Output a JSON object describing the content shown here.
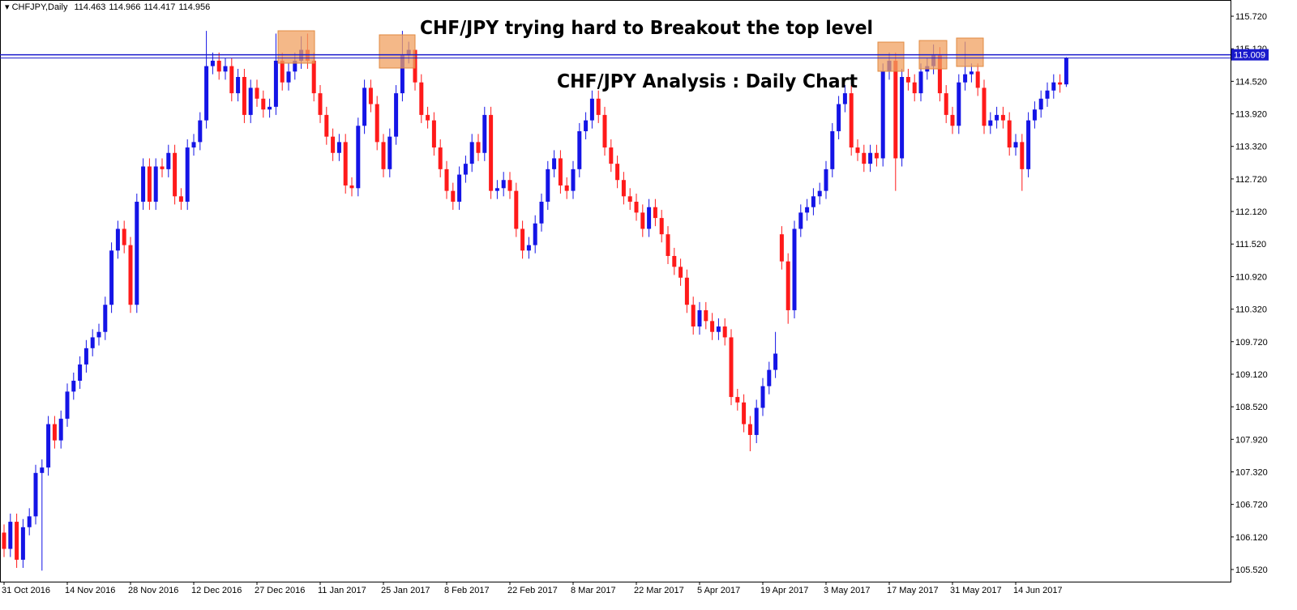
{
  "chart_data": {
    "type": "candlestick",
    "symbol": "CHFJPY,Daily",
    "annotations": [
      "CHF/JPY trying hard to Breakout the top level",
      "CHF/JPY Analysis : Daily Chart"
    ],
    "up_color": "#1414e6",
    "down_color": "#ff1a1a",
    "level": 115.009,
    "level_color": "#1a1acc",
    "ylim": [
      105.296,
      116.019
    ],
    "yticks": [
      {
        "value": 105.52,
        "label": "105.520"
      },
      {
        "value": 106.12,
        "label": "106.120"
      },
      {
        "value": 106.72,
        "label": "106.720"
      },
      {
        "value": 107.32,
        "label": "107.320"
      },
      {
        "value": 107.92,
        "label": "107.920"
      },
      {
        "value": 108.52,
        "label": "108.520"
      },
      {
        "value": 109.12,
        "label": "109.120"
      },
      {
        "value": 109.72,
        "label": "109.720"
      },
      {
        "value": 110.32,
        "label": "110.320"
      },
      {
        "value": 110.92,
        "label": "110.920"
      },
      {
        "value": 111.52,
        "label": "111.520"
      },
      {
        "value": 112.12,
        "label": "112.120"
      },
      {
        "value": 112.72,
        "label": "112.720"
      },
      {
        "value": 113.32,
        "label": "113.320"
      },
      {
        "value": 113.92,
        "label": "113.920"
      },
      {
        "value": 114.52,
        "label": "114.520"
      },
      {
        "value": 115.12,
        "label": "115.120"
      },
      {
        "value": 115.72,
        "label": "115.720"
      }
    ],
    "categories": [
      "31 Oct 2016",
      null,
      null,
      null,
      null,
      null,
      null,
      null,
      null,
      null,
      "14 Nov 2016",
      null,
      null,
      null,
      null,
      null,
      null,
      null,
      null,
      null,
      "28 Nov 2016",
      null,
      null,
      null,
      null,
      null,
      null,
      null,
      null,
      null,
      "12 Dec 2016",
      null,
      null,
      null,
      null,
      null,
      null,
      null,
      null,
      null,
      "27 Dec 2016",
      null,
      null,
      null,
      null,
      null,
      null,
      null,
      null,
      null,
      "11 Jan 2017",
      null,
      null,
      null,
      null,
      null,
      null,
      null,
      null,
      null,
      "25 Jan 2017",
      null,
      null,
      null,
      null,
      null,
      null,
      null,
      null,
      null,
      "8 Feb 2017",
      null,
      null,
      null,
      null,
      null,
      null,
      null,
      null,
      null,
      "22 Feb 2017",
      null,
      null,
      null,
      null,
      null,
      null,
      null,
      null,
      null,
      "8 Mar 2017",
      null,
      null,
      null,
      null,
      null,
      null,
      null,
      null,
      null,
      "22 Mar 2017",
      null,
      null,
      null,
      null,
      null,
      null,
      null,
      null,
      null,
      "5 Apr 2017",
      null,
      null,
      null,
      null,
      null,
      null,
      null,
      null,
      null,
      "19 Apr 2017",
      null,
      null,
      null,
      null,
      null,
      null,
      null,
      null,
      null,
      "3 May 2017",
      null,
      null,
      null,
      null,
      null,
      null,
      null,
      null,
      null,
      "17 May 2017",
      null,
      null,
      null,
      null,
      null,
      null,
      null,
      null,
      null,
      "31 May 2017",
      null,
      null,
      null,
      null,
      null,
      null,
      null,
      null,
      null,
      "14 Jun 2017",
      null,
      null,
      null,
      null,
      null,
      null,
      null,
      null
    ],
    "open": [
      106.2,
      105.9,
      106.4,
      105.7,
      106.3,
      106.5,
      107.3,
      107.4,
      108.2,
      107.9,
      108.3,
      108.8,
      109.0,
      109.3,
      109.6,
      109.8,
      109.9,
      110.4,
      111.4,
      111.8,
      111.5,
      110.4,
      112.3,
      112.95,
      112.3,
      112.95,
      112.9,
      113.2,
      112.4,
      112.3,
      113.3,
      113.4,
      113.8,
      114.8,
      114.9,
      114.7,
      114.8,
      114.3,
      114.6,
      113.9,
      114.4,
      114.2,
      114.0,
      114.05,
      114.9,
      114.5,
      114.7,
      114.9,
      115.1,
      114.9,
      114.3,
      113.9,
      113.5,
      113.2,
      113.4,
      112.6,
      112.55,
      113.7,
      114.4,
      114.1,
      113.4,
      112.9,
      113.5,
      114.3,
      115.0,
      115.1,
      114.5,
      113.9,
      113.8,
      113.3,
      112.9,
      112.5,
      112.3,
      112.8,
      113.0,
      113.4,
      113.2,
      113.9,
      112.5,
      112.55,
      112.7,
      112.5,
      111.8,
      111.4,
      111.5,
      111.9,
      112.3,
      112.9,
      113.1,
      112.6,
      112.5,
      112.9,
      113.6,
      113.8,
      114.2,
      113.9,
      113.3,
      113.0,
      112.7,
      112.4,
      112.3,
      112.1,
      111.8,
      112.2,
      112.0,
      111.7,
      111.3,
      111.1,
      110.9,
      110.4,
      110.0,
      110.3,
      110.1,
      109.9,
      110.0,
      109.8,
      108.7,
      108.6,
      108.2,
      108.0,
      108.5,
      108.9,
      109.2,
      111.7,
      111.2,
      110.3,
      111.8,
      112.1,
      112.2,
      112.4,
      112.5,
      112.9,
      113.6,
      114.1,
      114.3,
      113.3,
      113.2,
      113.0,
      113.2,
      113.1,
      114.7,
      114.9,
      113.1,
      114.6,
      114.5,
      114.3,
      114.7,
      114.8,
      115.0,
      114.3,
      113.9,
      113.7,
      114.5,
      114.65,
      114.7,
      114.4,
      113.7,
      113.8,
      113.9,
      113.8,
      113.3,
      113.4,
      112.9,
      113.8,
      114.0,
      114.2,
      114.35,
      114.5,
      114.463
    ],
    "high": [
      106.35,
      106.55,
      106.55,
      106.45,
      106.65,
      107.45,
      107.55,
      108.35,
      108.35,
      108.45,
      108.95,
      109.15,
      109.45,
      109.75,
      109.95,
      110.05,
      110.55,
      111.55,
      111.95,
      111.95,
      111.65,
      112.45,
      113.1,
      113.1,
      113.1,
      113.1,
      113.35,
      113.35,
      112.55,
      113.45,
      113.55,
      113.95,
      115.45,
      115.05,
      115.05,
      114.95,
      114.95,
      114.75,
      114.75,
      114.55,
      114.55,
      114.35,
      114.2,
      115.4,
      115.05,
      114.85,
      115.05,
      115.35,
      115.4,
      115.05,
      114.45,
      114.05,
      113.65,
      113.55,
      113.55,
      112.75,
      113.85,
      114.55,
      114.55,
      114.25,
      113.55,
      113.65,
      114.45,
      115.45,
      115.25,
      115.25,
      114.65,
      114.05,
      113.95,
      113.45,
      113.05,
      112.65,
      112.95,
      113.15,
      113.55,
      113.55,
      114.05,
      114.05,
      112.7,
      112.85,
      112.85,
      112.65,
      111.95,
      111.65,
      112.05,
      112.45,
      113.05,
      113.25,
      113.25,
      112.75,
      113.05,
      113.75,
      113.95,
      114.35,
      114.35,
      114.05,
      113.45,
      113.15,
      112.85,
      112.55,
      112.45,
      112.25,
      112.35,
      112.35,
      112.15,
      111.85,
      111.45,
      111.25,
      111.05,
      110.55,
      110.45,
      110.45,
      110.25,
      110.15,
      110.15,
      109.95,
      108.85,
      108.75,
      108.35,
      108.65,
      109.05,
      109.35,
      109.9,
      111.85,
      111.35,
      111.95,
      112.25,
      112.35,
      112.55,
      112.65,
      113.05,
      113.75,
      114.25,
      114.45,
      114.45,
      113.45,
      113.35,
      113.35,
      113.35,
      114.85,
      115.05,
      115.05,
      114.75,
      114.75,
      114.65,
      114.85,
      114.95,
      115.2,
      115.15,
      114.45,
      114.05,
      114.65,
      115.25,
      114.85,
      114.85,
      114.55,
      113.95,
      114.05,
      114.05,
      113.95,
      113.55,
      113.55,
      113.95,
      114.15,
      114.35,
      114.5,
      114.65,
      114.65,
      114.966
    ],
    "low": [
      105.75,
      105.75,
      105.55,
      105.55,
      106.15,
      106.35,
      105.5,
      107.25,
      107.75,
      107.75,
      108.15,
      108.65,
      108.85,
      109.15,
      109.45,
      109.65,
      109.75,
      110.25,
      111.25,
      111.35,
      110.25,
      110.25,
      112.15,
      112.15,
      112.15,
      112.75,
      112.75,
      112.25,
      112.15,
      112.15,
      113.15,
      113.25,
      113.65,
      114.65,
      114.55,
      114.55,
      114.15,
      114.15,
      113.75,
      113.75,
      114.05,
      113.85,
      113.85,
      113.9,
      114.35,
      114.35,
      114.55,
      114.75,
      114.75,
      114.15,
      113.75,
      113.35,
      113.05,
      113.05,
      112.45,
      112.4,
      112.4,
      113.55,
      113.95,
      113.25,
      112.75,
      112.75,
      113.35,
      114.15,
      114.85,
      114.35,
      113.75,
      113.65,
      113.15,
      112.75,
      112.35,
      112.15,
      112.15,
      112.65,
      112.85,
      113.05,
      113.05,
      112.35,
      112.35,
      112.4,
      112.35,
      111.65,
      111.25,
      111.25,
      111.35,
      111.75,
      112.15,
      112.75,
      112.45,
      112.35,
      112.35,
      112.75,
      113.45,
      113.65,
      113.75,
      113.15,
      112.85,
      112.55,
      112.25,
      112.15,
      111.95,
      111.65,
      111.65,
      111.85,
      111.55,
      111.15,
      110.95,
      110.75,
      110.25,
      109.85,
      109.85,
      109.95,
      109.75,
      109.75,
      109.65,
      108.55,
      108.45,
      108.05,
      107.7,
      107.85,
      108.35,
      108.75,
      109.05,
      111.05,
      110.05,
      110.15,
      111.65,
      111.95,
      112.05,
      112.25,
      112.35,
      112.75,
      113.45,
      113.95,
      113.15,
      113.05,
      112.85,
      112.85,
      112.95,
      112.95,
      114.55,
      112.5,
      112.95,
      114.35,
      114.15,
      114.15,
      114.55,
      114.65,
      114.15,
      113.75,
      113.55,
      113.55,
      114.35,
      114.5,
      114.25,
      113.55,
      113.55,
      113.65,
      113.65,
      113.15,
      113.15,
      112.5,
      112.75,
      113.65,
      113.85,
      114.05,
      114.2,
      114.31,
      114.417
    ],
    "close": [
      105.9,
      106.4,
      105.7,
      106.3,
      106.5,
      107.3,
      107.4,
      108.2,
      107.9,
      108.3,
      108.8,
      109.0,
      109.3,
      109.6,
      109.8,
      109.9,
      110.4,
      111.4,
      111.8,
      111.5,
      110.4,
      112.3,
      112.95,
      112.3,
      112.95,
      112.9,
      113.2,
      112.4,
      112.3,
      113.3,
      113.4,
      113.8,
      114.8,
      114.9,
      114.7,
      114.8,
      114.3,
      114.6,
      113.9,
      114.4,
      114.2,
      114.0,
      114.05,
      114.9,
      114.5,
      114.7,
      114.9,
      115.1,
      114.9,
      114.3,
      113.9,
      113.5,
      113.2,
      113.4,
      112.6,
      112.55,
      113.7,
      114.4,
      114.1,
      113.4,
      112.9,
      113.5,
      114.3,
      115.0,
      115.1,
      114.5,
      113.9,
      113.8,
      113.3,
      112.9,
      112.5,
      112.3,
      112.8,
      113.0,
      113.4,
      113.2,
      113.9,
      112.5,
      112.55,
      112.7,
      112.5,
      111.8,
      111.4,
      111.5,
      111.9,
      112.3,
      112.9,
      113.1,
      112.6,
      112.5,
      112.9,
      113.6,
      113.8,
      114.2,
      113.9,
      113.3,
      113.0,
      112.7,
      112.4,
      112.3,
      112.1,
      111.8,
      112.2,
      112.0,
      111.7,
      111.3,
      111.1,
      110.9,
      110.4,
      110.0,
      110.3,
      110.1,
      109.9,
      110.0,
      109.8,
      108.7,
      108.6,
      108.2,
      108.0,
      108.5,
      108.9,
      109.2,
      109.5,
      111.2,
      110.3,
      111.8,
      112.1,
      112.2,
      112.4,
      112.5,
      112.9,
      113.6,
      114.1,
      114.3,
      113.3,
      113.2,
      113.0,
      113.2,
      113.1,
      114.7,
      114.9,
      113.1,
      114.6,
      114.5,
      114.3,
      114.7,
      114.8,
      115.0,
      114.3,
      113.9,
      113.7,
      114.5,
      114.65,
      114.7,
      114.4,
      113.7,
      113.8,
      113.9,
      113.8,
      113.3,
      113.4,
      112.9,
      113.8,
      114.0,
      114.2,
      114.35,
      114.5,
      114.46,
      114.956
    ]
  }
}
